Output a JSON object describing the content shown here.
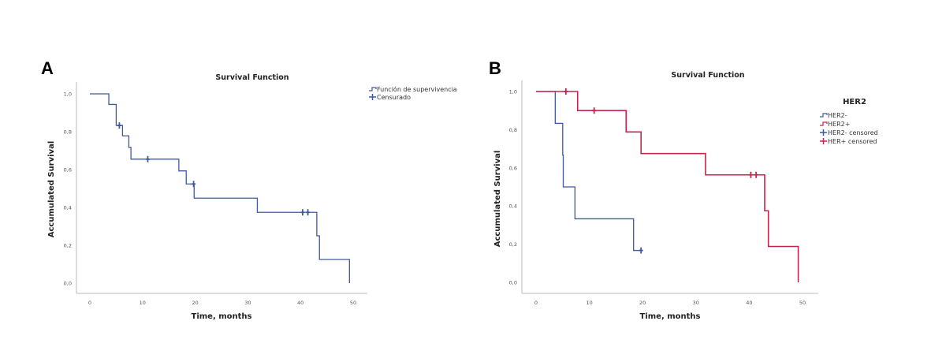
{
  "chart_data": [
    {
      "panel": "A",
      "type": "line",
      "subtype": "kaplan-meier-step",
      "title": "Survival Function",
      "xlabel": "Time, months",
      "ylabel": "Accumulated Survival",
      "xlim": [
        0,
        50
      ],
      "ylim": [
        0,
        1
      ],
      "xticks": [
        "0",
        "10",
        "20",
        "30",
        "40",
        "50"
      ],
      "yticks": [
        "0,0",
        "0,2",
        "0,4",
        "0,6",
        "0,8",
        "1,0"
      ],
      "grid": false,
      "legend_position": "top-right",
      "legend": [
        {
          "label": "Función de supervivencia",
          "kind": "step",
          "color": "#3f5a9e"
        },
        {
          "label": "Censurado",
          "kind": "cross",
          "color": "#3f5a9e"
        }
      ],
      "series": [
        {
          "name": "Función de supervivencia",
          "color": "#3f5a9e",
          "steps": [
            [
              0,
              1.0
            ],
            [
              3.6,
              0.944
            ],
            [
              5.0,
              0.833
            ],
            [
              6.2,
              0.778
            ],
            [
              7.4,
              0.717
            ],
            [
              7.8,
              0.655
            ],
            [
              16.9,
              0.593
            ],
            [
              18.3,
              0.524
            ],
            [
              19.8,
              0.449
            ],
            [
              31.8,
              0.374
            ],
            [
              43.1,
              0.25
            ],
            [
              43.6,
              0.125
            ],
            [
              49.3,
              0.0
            ]
          ],
          "end": 49.3,
          "censored": [
            [
              5.6,
              0.833
            ],
            [
              11.0,
              0.655
            ],
            [
              19.7,
              0.524
            ],
            [
              40.4,
              0.374
            ],
            [
              41.4,
              0.374
            ]
          ]
        }
      ]
    },
    {
      "panel": "B",
      "type": "line",
      "subtype": "kaplan-meier-step",
      "title": "Survival Function",
      "xlabel": "Time, months",
      "ylabel": "Accumulated Survival",
      "xlim": [
        0,
        50
      ],
      "ylim": [
        0,
        1
      ],
      "xticks": [
        "0",
        "10",
        "20",
        "30",
        "40",
        "50"
      ],
      "yticks": [
        "0,0",
        "0,2",
        "0,4",
        "0,6",
        "0,8",
        "1,0"
      ],
      "grid": false,
      "legend_position": "top-right",
      "legend_title": "HER2",
      "legend": [
        {
          "label": "HER2-",
          "kind": "step",
          "color": "#3f5a9e"
        },
        {
          "label": "HER2+",
          "kind": "step",
          "color": "#c0264e"
        },
        {
          "label": "HER2- censored",
          "kind": "cross",
          "color": "#3f5a9e"
        },
        {
          "label": "HER+ censored",
          "kind": "cross",
          "color": "#c0264e"
        }
      ],
      "series": [
        {
          "name": "HER2-",
          "color": "#3f5a9e",
          "steps": [
            [
              0,
              1.0
            ],
            [
              3.6,
              0.833
            ],
            [
              5.0,
              0.667
            ],
            [
              5.1,
              0.5
            ],
            [
              7.3,
              0.333
            ],
            [
              18.3,
              0.167
            ]
          ],
          "end": 19.7,
          "censored": [
            [
              19.7,
              0.167
            ]
          ]
        },
        {
          "name": "HER2+",
          "color": "#c0264e",
          "steps": [
            [
              0,
              1.0
            ],
            [
              7.8,
              0.9
            ],
            [
              16.9,
              0.788
            ],
            [
              19.7,
              0.675
            ],
            [
              31.8,
              0.563
            ],
            [
              42.9,
              0.375
            ],
            [
              43.6,
              0.188
            ],
            [
              49.2,
              0.0
            ]
          ],
          "end": 49.2,
          "censored": [
            [
              5.6,
              1.0
            ],
            [
              10.9,
              0.9
            ],
            [
              40.3,
              0.563
            ],
            [
              41.3,
              0.563
            ]
          ]
        }
      ]
    }
  ]
}
